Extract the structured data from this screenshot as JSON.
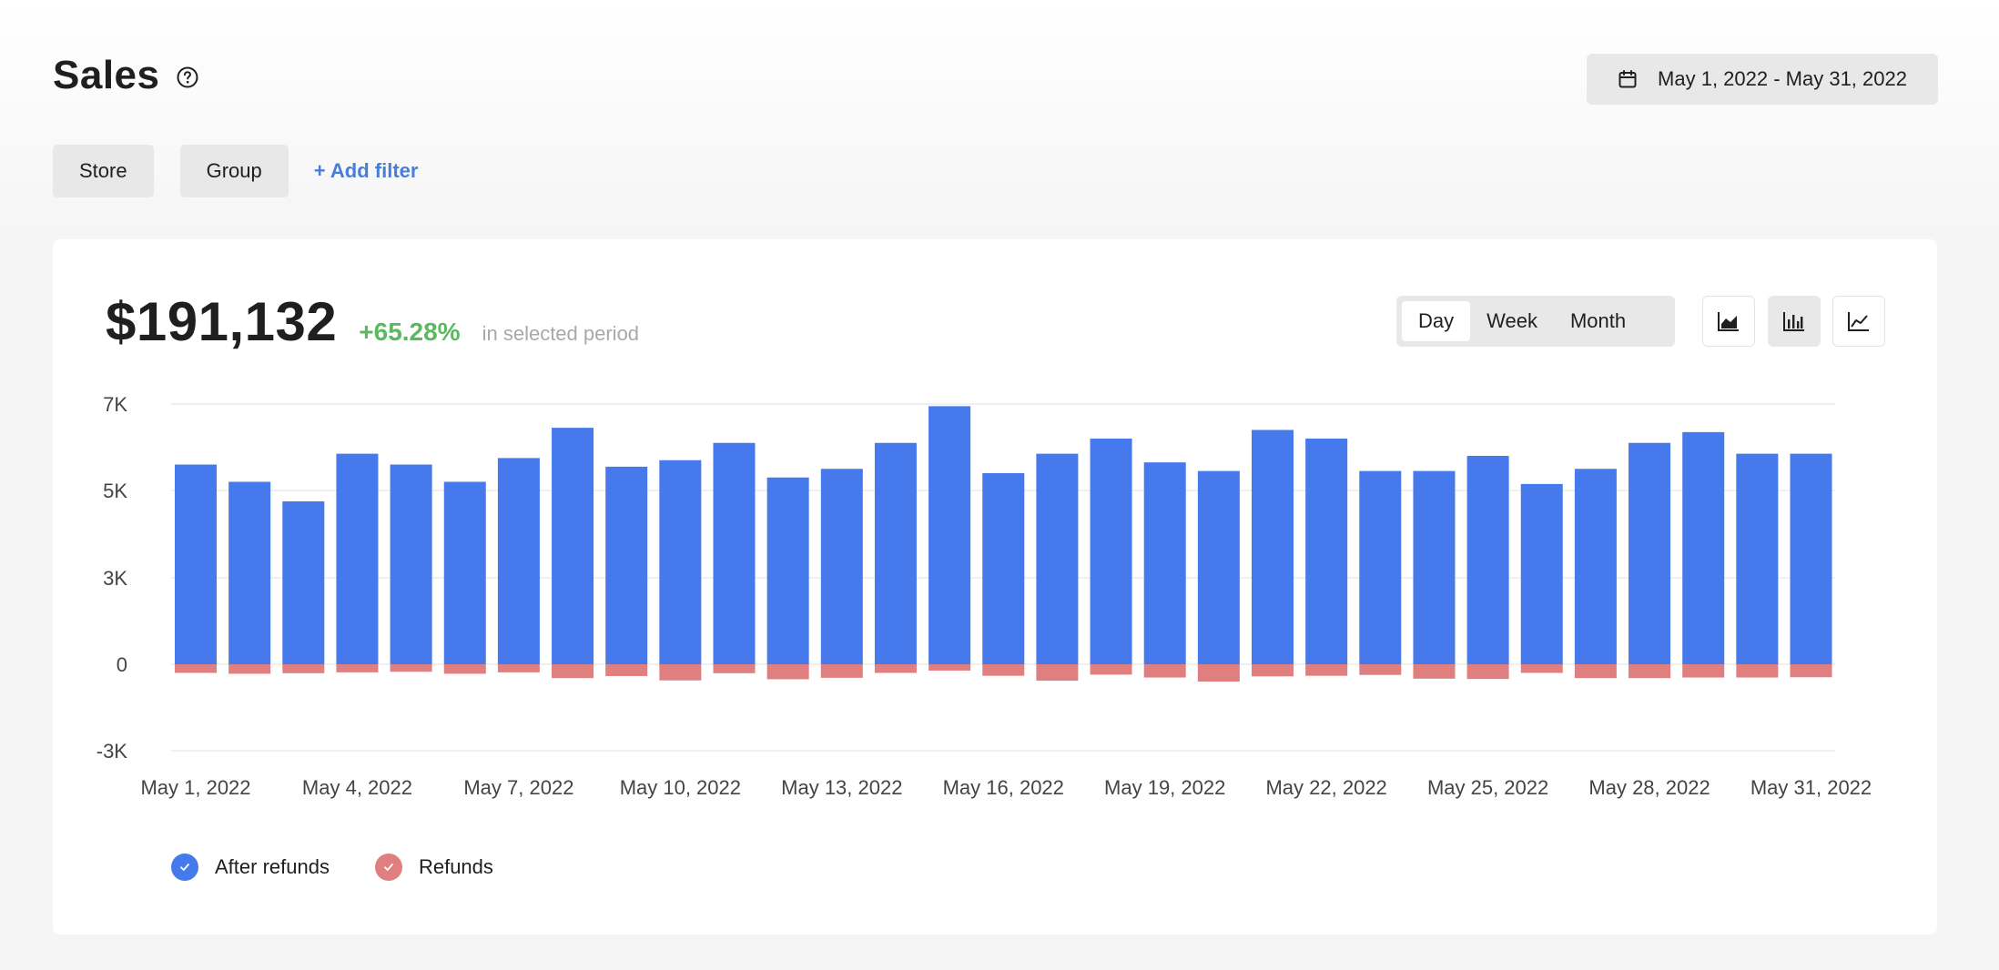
{
  "header": {
    "title": "Sales",
    "date_range": "May 1, 2022 - May 31, 2022"
  },
  "filters": {
    "store_label": "Store",
    "group_label": "Group",
    "add_filter_label": "+ Add filter"
  },
  "summary": {
    "total": "$191,132",
    "change": "+65.28%",
    "note": "in selected period"
  },
  "granularity": {
    "options": [
      "Day",
      "Week",
      "Month"
    ],
    "selected": "Day"
  },
  "chart_types": {
    "options": [
      "area-chart-icon",
      "bar-chart-icon",
      "line-chart-icon"
    ],
    "selected": "bar-chart-icon"
  },
  "colors": {
    "after_refunds": "#4679ec",
    "refunds": "#df7f80",
    "positive": "#5cb861",
    "link": "#4a7ed4"
  },
  "chart_data": {
    "type": "bar",
    "title": "",
    "xlabel": "",
    "ylabel": "",
    "ylim": [
      -3000,
      7000
    ],
    "y_ticks": [
      {
        "value": -3000,
        "label": "-3K"
      },
      {
        "value": 0,
        "label": "0"
      },
      {
        "value": 3000,
        "label": "3K"
      },
      {
        "value": 5000,
        "label": "5K"
      },
      {
        "value": 7000,
        "label": "7K"
      }
    ],
    "x_tick_labels": [
      "May 1, 2022",
      "May 4, 2022",
      "May 7, 2022",
      "May 10, 2022",
      "May 13, 2022",
      "May 16, 2022",
      "May 19, 2022",
      "May 22, 2022",
      "May 25, 2022",
      "May 28, 2022",
      "May 31, 2022"
    ],
    "x_tick_days": [
      1,
      4,
      7,
      10,
      13,
      16,
      19,
      22,
      25,
      28,
      31
    ],
    "categories": [
      "May 1, 2022",
      "May 2, 2022",
      "May 3, 2022",
      "May 4, 2022",
      "May 5, 2022",
      "May 6, 2022",
      "May 7, 2022",
      "May 8, 2022",
      "May 9, 2022",
      "May 10, 2022",
      "May 11, 2022",
      "May 12, 2022",
      "May 13, 2022",
      "May 14, 2022",
      "May 15, 2022",
      "May 16, 2022",
      "May 17, 2022",
      "May 18, 2022",
      "May 19, 2022",
      "May 20, 2022",
      "May 21, 2022",
      "May 22, 2022",
      "May 23, 2022",
      "May 24, 2022",
      "May 25, 2022",
      "May 26, 2022",
      "May 27, 2022",
      "May 28, 2022",
      "May 29, 2022",
      "May 30, 2022",
      "May 31, 2022"
    ],
    "series": [
      {
        "name": "After refunds",
        "values": [
          5600,
          5200,
          4750,
          5850,
          5600,
          5200,
          5750,
          6450,
          5550,
          5700,
          6100,
          5300,
          5500,
          6100,
          6950,
          5400,
          5850,
          6200,
          5650,
          5450,
          6400,
          6200,
          5450,
          5450,
          5800,
          5150,
          5500,
          6100,
          6350,
          5850,
          5850
        ]
      },
      {
        "name": "Refunds",
        "values": [
          -300,
          -330,
          -310,
          -280,
          -260,
          -330,
          -280,
          -480,
          -410,
          -560,
          -310,
          -520,
          -470,
          -300,
          -220,
          -400,
          -570,
          -360,
          -460,
          -600,
          -420,
          -400,
          -370,
          -500,
          -510,
          -300,
          -480,
          -480,
          -460,
          -460,
          -450
        ]
      }
    ],
    "legend_position": "bottom-left",
    "grid": true
  }
}
